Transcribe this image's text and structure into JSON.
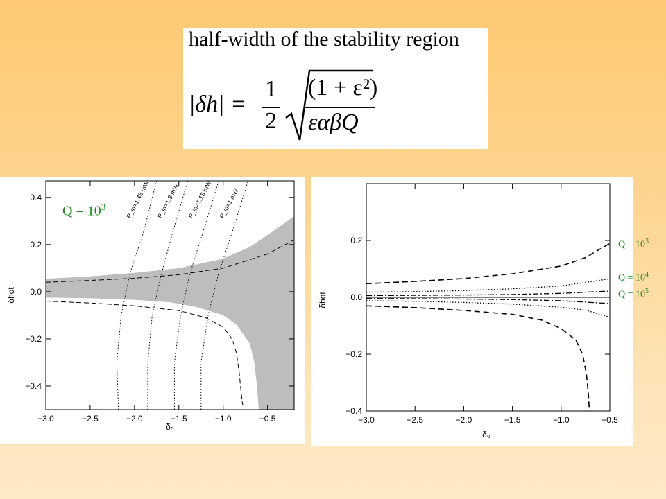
{
  "formula": {
    "heading": "half-width of the stability region",
    "lhs": "|δh| =",
    "half_num": "1",
    "half_den": "2",
    "radicand_num": "(1 + ε²)",
    "radicand_den": "εαβQ"
  },
  "chart_data": [
    {
      "type": "line",
      "xlabel": "δ₀",
      "ylabel": "δhot",
      "xlim": [
        -3.0,
        -0.2
      ],
      "ylim": [
        -0.5,
        0.47
      ],
      "xticks": [
        "−3.0",
        "−2.5",
        "−2.0",
        "−1.5",
        "−1.0",
        "−0.5"
      ],
      "xtick_values": [
        -3.0,
        -2.5,
        -2.0,
        -1.5,
        -1.0,
        -0.5
      ],
      "yticks": [
        "0.4",
        "0.2",
        "0.0",
        "−0.2",
        "−0.4"
      ],
      "ytick_values": [
        0.4,
        0.2,
        0.0,
        -0.2,
        -0.4
      ],
      "annotation": "Q = 10",
      "annotation_exp": "3",
      "annotation_color": "#1e8c1e",
      "shade_color": "#bdbdbd",
      "shaded_upper": [
        [
          -3.0,
          0.055
        ],
        [
          -2.5,
          0.065
        ],
        [
          -2.0,
          0.08
        ],
        [
          -1.5,
          0.1
        ],
        [
          -1.0,
          0.14
        ],
        [
          -0.7,
          0.19
        ],
        [
          -0.5,
          0.24
        ],
        [
          -0.2,
          0.32
        ]
      ],
      "shaded_lower": [
        [
          -3.0,
          -0.025
        ],
        [
          -2.5,
          -0.028
        ],
        [
          -2.0,
          -0.035
        ],
        [
          -1.6,
          -0.045
        ],
        [
          -1.3,
          -0.065
        ],
        [
          -1.0,
          -0.1
        ],
        [
          -0.85,
          -0.14
        ],
        [
          -0.7,
          -0.22
        ],
        [
          -0.65,
          -0.3
        ],
        [
          -0.62,
          -0.4
        ],
        [
          -0.6,
          -0.5
        ]
      ],
      "white_band_lower": [
        [
          -3.0,
          -0.045
        ],
        [
          -2.5,
          -0.05
        ],
        [
          -2.0,
          -0.06
        ],
        [
          -1.6,
          -0.075
        ],
        [
          -1.3,
          -0.1
        ],
        [
          -1.0,
          -0.14
        ],
        [
          -0.85,
          -0.19
        ],
        [
          -0.78,
          -0.26
        ],
        [
          -0.74,
          -0.34
        ],
        [
          -0.72,
          -0.42
        ],
        [
          -0.71,
          -0.5
        ]
      ],
      "dashed_upper": [
        [
          -3.0,
          0.04
        ],
        [
          -2.5,
          0.048
        ],
        [
          -2.0,
          0.057
        ],
        [
          -1.5,
          0.072
        ],
        [
          -1.0,
          0.1
        ],
        [
          -0.5,
          0.16
        ],
        [
          -0.2,
          0.22
        ]
      ],
      "dashed_lower": [
        [
          -3.0,
          -0.04
        ],
        [
          -2.5,
          -0.048
        ],
        [
          -2.0,
          -0.06
        ],
        [
          -1.5,
          -0.08
        ],
        [
          -1.2,
          -0.11
        ],
        [
          -1.0,
          -0.15
        ],
        [
          -0.9,
          -0.2
        ],
        [
          -0.85,
          -0.26
        ],
        [
          -0.82,
          -0.34
        ],
        [
          -0.8,
          -0.42
        ],
        [
          -0.78,
          -0.48
        ]
      ],
      "power_series": [
        {
          "name": "P_in=1.45 mW",
          "points": [
            [
              -2.18,
              -0.5
            ],
            [
              -2.2,
              -0.3
            ],
            [
              -2.15,
              -0.1
            ],
            [
              -2.05,
              0.08
            ],
            [
              -1.9,
              0.25
            ],
            [
              -1.75,
              0.47
            ]
          ]
        },
        {
          "name": "P_in=1.3 mW",
          "points": [
            [
              -1.85,
              -0.5
            ],
            [
              -1.85,
              -0.3
            ],
            [
              -1.8,
              -0.1
            ],
            [
              -1.7,
              0.07
            ],
            [
              -1.57,
              0.25
            ],
            [
              -1.4,
              0.47
            ]
          ]
        },
        {
          "name": "P_in=1.15 mW",
          "points": [
            [
              -1.55,
              -0.5
            ],
            [
              -1.55,
              -0.3
            ],
            [
              -1.48,
              -0.1
            ],
            [
              -1.38,
              0.07
            ],
            [
              -1.23,
              0.25
            ],
            [
              -1.05,
              0.47
            ]
          ]
        },
        {
          "name": "P_in=1 mW",
          "points": [
            [
              -1.25,
              -0.5
            ],
            [
              -1.25,
              -0.3
            ],
            [
              -1.17,
              -0.1
            ],
            [
              -1.05,
              0.08
            ],
            [
              -0.9,
              0.25
            ],
            [
              -0.72,
              0.47
            ]
          ]
        }
      ],
      "power_labels": [
        {
          "text": "P_in=1.45 mW",
          "x": -2.05,
          "y": 0.31
        },
        {
          "text": "P_in=1.3 mW",
          "x": -1.7,
          "y": 0.31
        },
        {
          "text": "P_in=1.15 mW",
          "x": -1.35,
          "y": 0.31
        },
        {
          "text": "P_in=1 mW",
          "x": -1.0,
          "y": 0.31
        }
      ]
    },
    {
      "type": "line",
      "xlabel": "δ₀",
      "ylabel": "δhot",
      "xlim": [
        -3.0,
        -0.5
      ],
      "ylim": [
        -0.4,
        0.4
      ],
      "xticks": [
        "−3.0",
        "−2.5",
        "−2.0",
        "−1.5",
        "−1.0",
        "−0.5"
      ],
      "xtick_values": [
        -3.0,
        -2.5,
        -2.0,
        -1.5,
        -1.0,
        -0.5
      ],
      "yticks": [
        "0.2",
        "0.0",
        "−0.2",
        "−0.4"
      ],
      "ytick_values": [
        0.2,
        0.0,
        -0.2,
        -0.4
      ],
      "series": [
        {
          "name": "Q = 10",
          "exp": "3",
          "style": "dashed",
          "upper": [
            [
              -3.0,
              0.048
            ],
            [
              -2.5,
              0.056
            ],
            [
              -2.0,
              0.066
            ],
            [
              -1.5,
              0.083
            ],
            [
              -1.0,
              0.11
            ],
            [
              -0.75,
              0.14
            ],
            [
              -0.5,
              0.19
            ]
          ],
          "lower": [
            [
              -3.0,
              -0.03
            ],
            [
              -2.5,
              -0.036
            ],
            [
              -2.0,
              -0.046
            ],
            [
              -1.5,
              -0.06
            ],
            [
              -1.2,
              -0.08
            ],
            [
              -1.0,
              -0.11
            ],
            [
              -0.85,
              -0.15
            ],
            [
              -0.78,
              -0.2
            ],
            [
              -0.74,
              -0.27
            ],
            [
              -0.72,
              -0.34
            ],
            [
              -0.71,
              -0.4
            ]
          ]
        },
        {
          "name": "Q = 10",
          "exp": "4",
          "style": "dotted",
          "upper": [
            [
              -3.0,
              0.018
            ],
            [
              -2.5,
              0.02
            ],
            [
              -2.0,
              0.024
            ],
            [
              -1.5,
              0.03
            ],
            [
              -1.0,
              0.04
            ],
            [
              -0.5,
              0.065
            ]
          ],
          "lower": [
            [
              -3.0,
              -0.012
            ],
            [
              -2.5,
              -0.014
            ],
            [
              -2.0,
              -0.018
            ],
            [
              -1.5,
              -0.024
            ],
            [
              -1.0,
              -0.035
            ],
            [
              -0.75,
              -0.045
            ],
            [
              -0.5,
              -0.07
            ]
          ]
        },
        {
          "name": "Q = 10",
          "exp": "5",
          "style": "dashdot",
          "upper": [
            [
              -3.0,
              0.006
            ],
            [
              -2.5,
              0.007
            ],
            [
              -2.0,
              0.008
            ],
            [
              -1.5,
              0.01
            ],
            [
              -1.0,
              0.014
            ],
            [
              -0.5,
              0.022
            ]
          ],
          "lower": [
            [
              -3.0,
              -0.004
            ],
            [
              -2.5,
              -0.005
            ],
            [
              -2.0,
              -0.006
            ],
            [
              -1.5,
              -0.008
            ],
            [
              -1.0,
              -0.012
            ],
            [
              -0.5,
              -0.022
            ]
          ]
        }
      ],
      "zero_line": 0.0,
      "label_color": "#1e8c1e"
    }
  ]
}
